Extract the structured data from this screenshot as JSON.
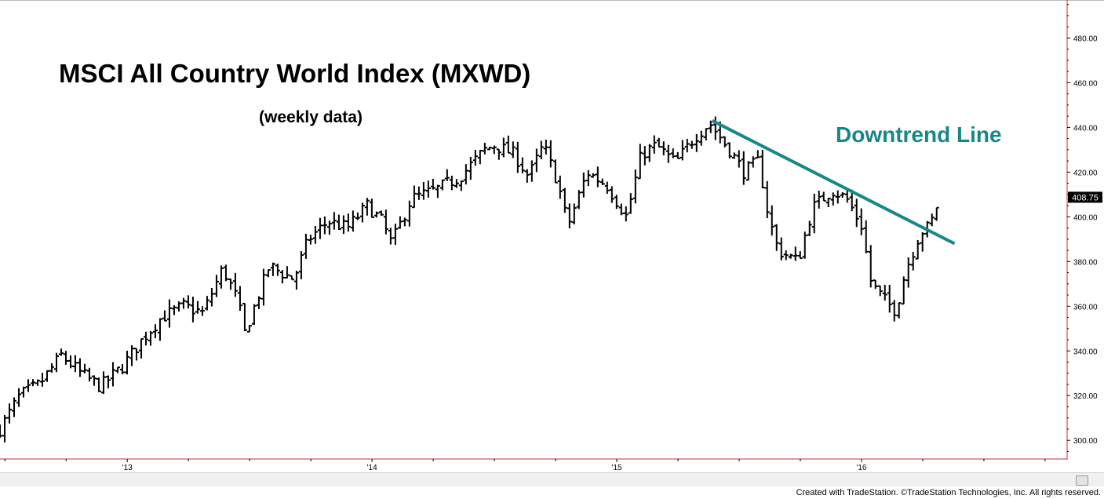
{
  "colors": {
    "background": "#ffffff",
    "price_bars": "#000000",
    "trendline": "#17878a",
    "axis_line": "#c0302c",
    "last_price_badge_bg": "#000000",
    "last_price_badge_text": "#ffffff"
  },
  "footer": {
    "credit": "Created with TradeStation. ©TradeStation Technologies, Inc. All rights reserved."
  },
  "chart_data": {
    "type": "line",
    "title": "MSCI All Country World Index (MXWD)",
    "subtitle": "(weekly data)",
    "xlabel": "",
    "ylabel": "",
    "x_tick_labels": [
      "'13",
      "'14",
      "'15",
      "'16"
    ],
    "y_tick_labels": [
      "300.00",
      "320.00",
      "340.00",
      "360.00",
      "380.00",
      "400.00",
      "420.00",
      "440.00",
      "460.00",
      "480.00"
    ],
    "ylim": [
      292,
      497
    ],
    "xlim": [
      2012.48,
      2016.84
    ],
    "grid": false,
    "last_price": "408.75",
    "annotations": [
      {
        "text": "Downtrend Line",
        "type": "line",
        "points": [
          {
            "x": 2015.39,
            "y": 443
          },
          {
            "x": 2016.38,
            "y": 388
          }
        ]
      }
    ],
    "series": [
      {
        "x": [
          2012.48,
          2012.56,
          2012.64,
          2012.73,
          2012.81,
          2012.89,
          2012.98,
          2013.06,
          2013.14,
          2013.23,
          2013.31,
          2013.39,
          2013.45,
          2013.48,
          2013.58,
          2013.68,
          2013.74,
          2013.82,
          2013.9,
          2013.98,
          2014.04,
          2014.08,
          2014.16,
          2014.26,
          2014.36,
          2014.46,
          2014.5,
          2014.58,
          2014.64,
          2014.7,
          2014.76,
          2014.8,
          2014.88,
          2014.96,
          2015.04,
          2015.1,
          2015.16,
          2015.24,
          2015.32,
          2015.38,
          2015.46,
          2015.52,
          2015.58,
          2015.62,
          2015.66,
          2015.74,
          2015.8,
          2015.88,
          2015.94,
          2016.0,
          2016.04,
          2016.1,
          2016.14,
          2016.18,
          2016.24,
          2016.28,
          2016.32
        ],
        "y": [
          305,
          320,
          325,
          338,
          330,
          324,
          333,
          345,
          355,
          360,
          357,
          377,
          363,
          348,
          378,
          372,
          390,
          398,
          395,
          405,
          398,
          388,
          408,
          412,
          418,
          430,
          432,
          428,
          418,
          432,
          415,
          396,
          420,
          414,
          400,
          428,
          432,
          424,
          436,
          442,
          430,
          420,
          425,
          400,
          385,
          380,
          404,
          412,
          408,
          396,
          370,
          362,
          358,
          376,
          393,
          396,
          409
        ]
      }
    ]
  }
}
